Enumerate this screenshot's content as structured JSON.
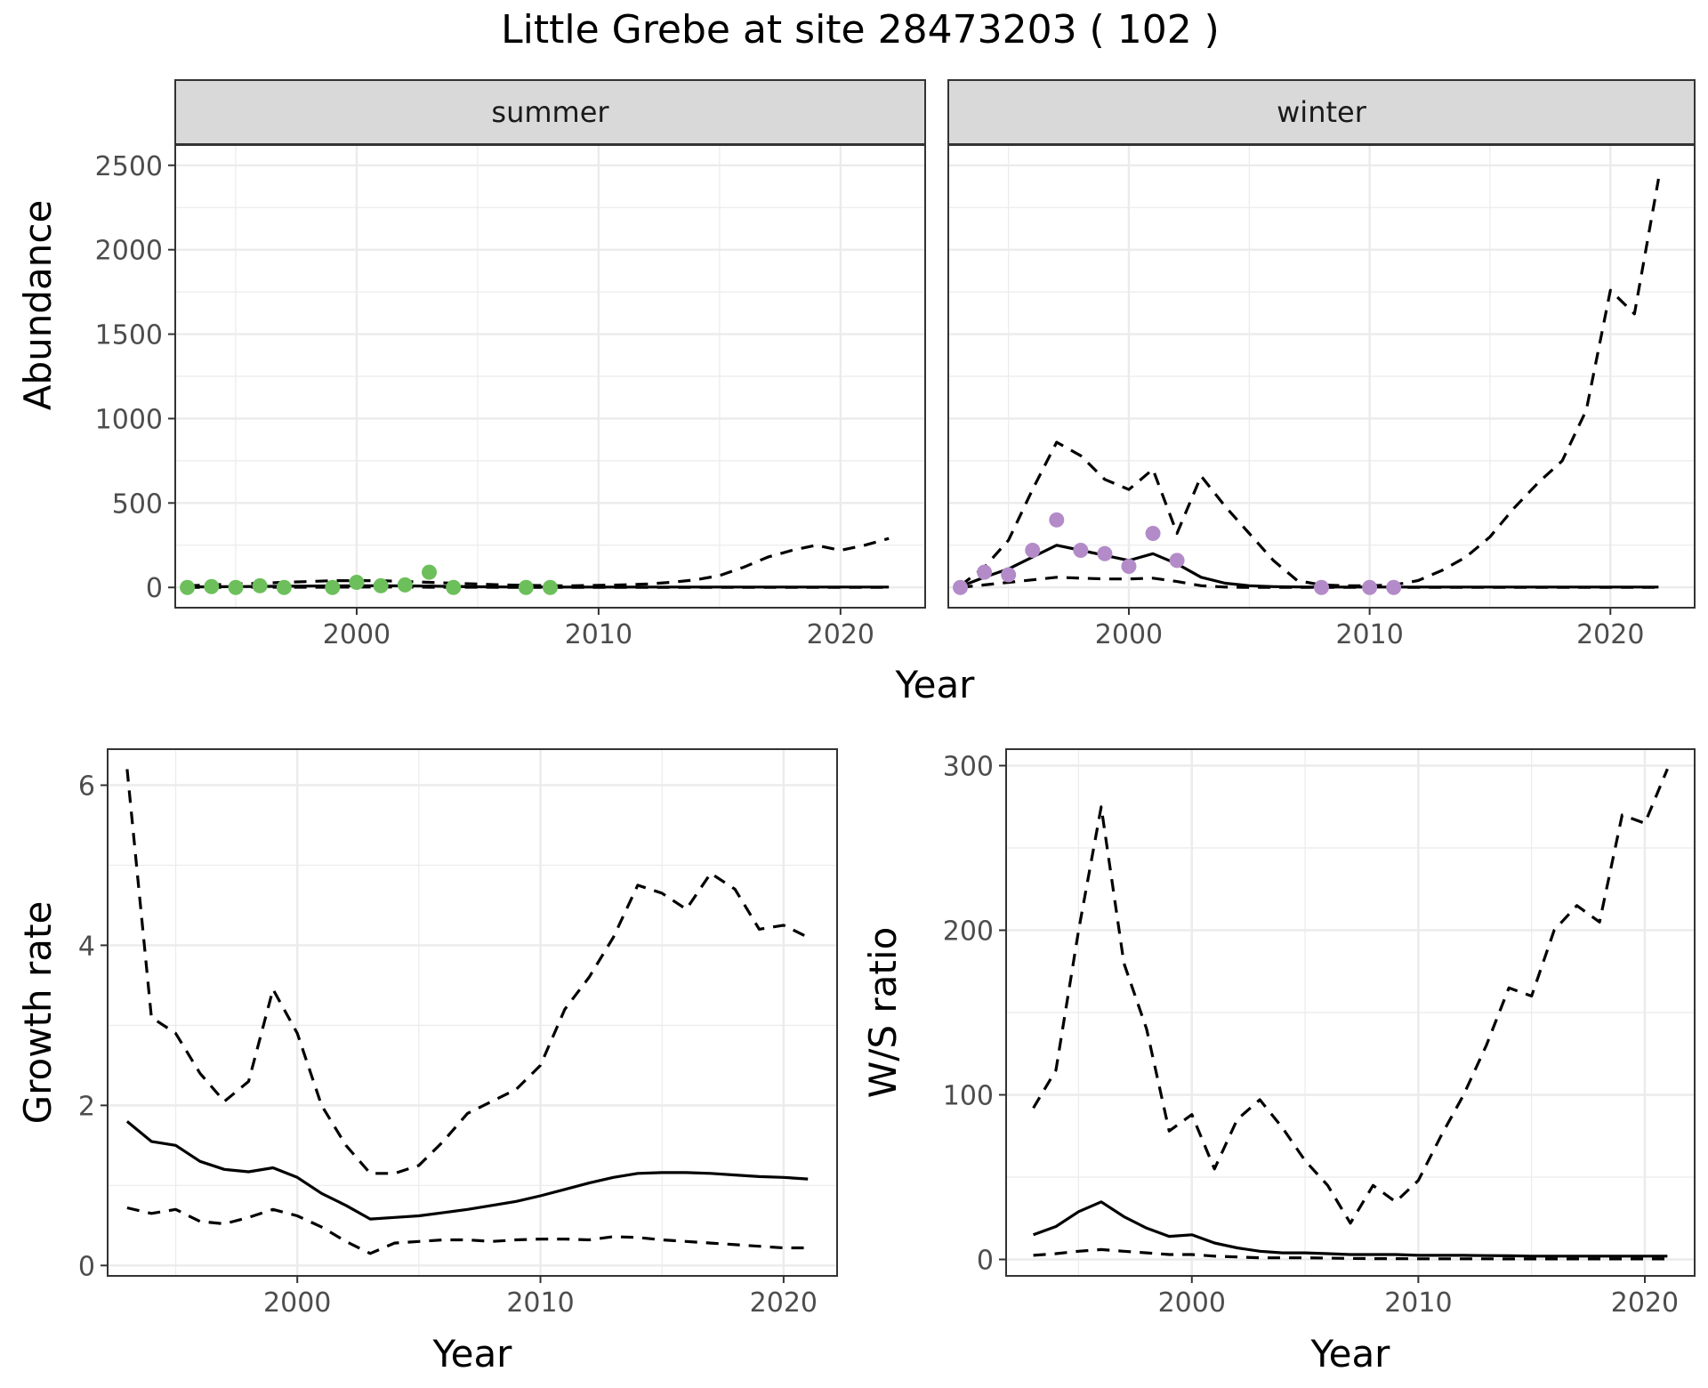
{
  "title": "Little Grebe at site 28473203 ( 102 )",
  "chart_data": [
    {
      "id": "abundance_summer",
      "type": "line",
      "facet": "summer",
      "xlabel": "Year",
      "ylabel": "Abundance",
      "xlim": [
        1992.5,
        2023.5
      ],
      "ylim": [
        -120,
        2620
      ],
      "x_ticks": [
        2000,
        2010,
        2020
      ],
      "y_ticks": [
        0,
        500,
        1000,
        1500,
        2000,
        2500
      ],
      "grid": true,
      "point_color": "#6cbf5b",
      "series": [
        {
          "role": "estimate",
          "style": "solid",
          "x": [
            1993,
            1994,
            1995,
            1996,
            1997,
            1998,
            1999,
            2000,
            2001,
            2002,
            2003,
            2004,
            2005,
            2006,
            2007,
            2008,
            2009,
            2010,
            2011,
            2012,
            2013,
            2014,
            2015,
            2016,
            2017,
            2018,
            2019,
            2020,
            2021,
            2022
          ],
          "y": [
            3,
            4,
            5,
            6,
            7,
            8,
            9,
            10,
            10,
            9,
            8,
            6,
            4,
            3,
            2,
            2,
            2,
            2,
            2,
            2,
            2,
            2,
            2,
            2,
            2,
            2,
            2,
            2,
            2,
            2
          ]
        },
        {
          "role": "lower",
          "style": "dashed",
          "x": [
            1993,
            1994,
            1995,
            1996,
            1997,
            1998,
            1999,
            2000,
            2001,
            2002,
            2003,
            2004,
            2005,
            2006,
            2007,
            2008,
            2009,
            2010,
            2011,
            2012,
            2013,
            2014,
            2015,
            2016,
            2017,
            2018,
            2019,
            2020,
            2021,
            2022
          ],
          "y": [
            0,
            0,
            1,
            1,
            1,
            1,
            1,
            2,
            2,
            2,
            1,
            1,
            1,
            0,
            0,
            0,
            0,
            0,
            0,
            0,
            0,
            0,
            0,
            0,
            0,
            0,
            0,
            0,
            0,
            0
          ]
        },
        {
          "role": "upper",
          "style": "dashed",
          "x": [
            1993,
            1994,
            1995,
            1996,
            1997,
            1998,
            1999,
            2000,
            2001,
            2002,
            2003,
            2004,
            2005,
            2006,
            2007,
            2008,
            2009,
            2010,
            2011,
            2012,
            2013,
            2014,
            2015,
            2016,
            2017,
            2018,
            2019,
            2020,
            2021,
            2022
          ],
          "y": [
            10,
            15,
            20,
            25,
            30,
            35,
            40,
            40,
            40,
            35,
            30,
            25,
            20,
            15,
            12,
            10,
            10,
            12,
            15,
            20,
            30,
            45,
            70,
            120,
            180,
            220,
            250,
            220,
            250,
            290
          ]
        }
      ],
      "observations": {
        "x": [
          1993,
          1994,
          1995,
          1996,
          1997,
          1999,
          2000,
          2001,
          2002,
          2003,
          2004,
          2007,
          2008
        ],
        "y": [
          0,
          5,
          0,
          10,
          0,
          0,
          30,
          10,
          15,
          90,
          0,
          0,
          0
        ]
      }
    },
    {
      "id": "abundance_winter",
      "type": "line",
      "facet": "winter",
      "xlabel": "Year",
      "ylabel": "Abundance",
      "xlim": [
        1992.5,
        2023.5
      ],
      "ylim": [
        -120,
        2620
      ],
      "x_ticks": [
        2000,
        2010,
        2020
      ],
      "y_ticks": [
        0,
        500,
        1000,
        1500,
        2000,
        2500
      ],
      "grid": true,
      "point_color": "#b38bc8",
      "series": [
        {
          "role": "estimate",
          "style": "solid",
          "x": [
            1993,
            1994,
            1995,
            1996,
            1997,
            1998,
            1999,
            2000,
            2001,
            2002,
            2003,
            2004,
            2005,
            2006,
            2007,
            2008,
            2009,
            2010,
            2011,
            2012,
            2013,
            2014,
            2015,
            2016,
            2017,
            2018,
            2019,
            2020,
            2021,
            2022
          ],
          "y": [
            5,
            60,
            110,
            180,
            250,
            220,
            190,
            160,
            200,
            140,
            60,
            25,
            10,
            5,
            3,
            2,
            2,
            2,
            2,
            2,
            2,
            2,
            2,
            2,
            2,
            2,
            2,
            2,
            2,
            2
          ]
        },
        {
          "role": "lower",
          "style": "dashed",
          "x": [
            1993,
            1994,
            1995,
            1996,
            1997,
            1998,
            1999,
            2000,
            2001,
            2002,
            2003,
            2004,
            2005,
            2006,
            2007,
            2008,
            2009,
            2010,
            2011,
            2012,
            2013,
            2014,
            2015,
            2016,
            2017,
            2018,
            2019,
            2020,
            2021,
            2022
          ],
          "y": [
            0,
            15,
            30,
            45,
            60,
            55,
            50,
            50,
            55,
            35,
            10,
            2,
            0,
            0,
            0,
            0,
            0,
            0,
            0,
            0,
            0,
            0,
            0,
            0,
            0,
            0,
            0,
            0,
            0,
            0
          ]
        },
        {
          "role": "upper",
          "style": "dashed",
          "x": [
            1993,
            1994,
            1995,
            1996,
            1997,
            1998,
            1999,
            2000,
            2001,
            2002,
            2003,
            2004,
            2005,
            2006,
            2007,
            2008,
            2009,
            2010,
            2011,
            2012,
            2013,
            2014,
            2015,
            2016,
            2017,
            2018,
            2019,
            2020,
            2021,
            2022
          ],
          "y": [
            10,
            120,
            280,
            580,
            860,
            780,
            640,
            580,
            700,
            320,
            660,
            480,
            320,
            160,
            40,
            15,
            10,
            10,
            15,
            40,
            100,
            180,
            300,
            470,
            620,
            750,
            1050,
            1760,
            1620,
            2420
          ]
        }
      ],
      "observations": {
        "x": [
          1993,
          1994,
          1995,
          1996,
          1997,
          1998,
          1999,
          2000,
          2001,
          2002,
          2008,
          2010,
          2011
        ],
        "y": [
          0,
          90,
          75,
          220,
          400,
          220,
          200,
          125,
          320,
          160,
          0,
          0,
          0
        ]
      }
    },
    {
      "id": "growth_rate",
      "type": "line",
      "xlabel": "Year",
      "ylabel": "Growth rate",
      "xlim": [
        1992.2,
        2022.2
      ],
      "ylim": [
        -0.13,
        6.45
      ],
      "x_ticks": [
        2000,
        2010,
        2020
      ],
      "y_ticks": [
        0,
        2,
        4,
        6
      ],
      "grid": true,
      "series": [
        {
          "role": "estimate",
          "style": "solid",
          "x": [
            1993,
            1994,
            1995,
            1996,
            1997,
            1998,
            1999,
            2000,
            2001,
            2002,
            2003,
            2004,
            2005,
            2006,
            2007,
            2008,
            2009,
            2010,
            2011,
            2012,
            2013,
            2014,
            2015,
            2016,
            2017,
            2018,
            2019,
            2020,
            2021
          ],
          "y": [
            1.8,
            1.55,
            1.5,
            1.3,
            1.2,
            1.17,
            1.22,
            1.1,
            0.9,
            0.75,
            0.58,
            0.6,
            0.62,
            0.66,
            0.7,
            0.75,
            0.8,
            0.87,
            0.95,
            1.03,
            1.1,
            1.15,
            1.16,
            1.16,
            1.15,
            1.13,
            1.11,
            1.1,
            1.08
          ]
        },
        {
          "role": "lower",
          "style": "dashed",
          "x": [
            1993,
            1994,
            1995,
            1996,
            1997,
            1998,
            1999,
            2000,
            2001,
            2002,
            2003,
            2004,
            2005,
            2006,
            2007,
            2008,
            2009,
            2010,
            2011,
            2012,
            2013,
            2014,
            2015,
            2016,
            2017,
            2018,
            2019,
            2020,
            2021
          ],
          "y": [
            0.72,
            0.65,
            0.7,
            0.55,
            0.52,
            0.6,
            0.7,
            0.62,
            0.48,
            0.3,
            0.15,
            0.28,
            0.3,
            0.32,
            0.32,
            0.3,
            0.32,
            0.33,
            0.33,
            0.32,
            0.36,
            0.35,
            0.32,
            0.3,
            0.28,
            0.26,
            0.24,
            0.22,
            0.22
          ]
        },
        {
          "role": "upper",
          "style": "dashed",
          "x": [
            1993,
            1994,
            1995,
            1996,
            1997,
            1998,
            1999,
            2000,
            2001,
            2002,
            2003,
            2004,
            2005,
            2006,
            2007,
            2008,
            2009,
            2010,
            2011,
            2012,
            2013,
            2014,
            2015,
            2016,
            2017,
            2018,
            2019,
            2020,
            2021
          ],
          "y": [
            6.2,
            3.1,
            2.9,
            2.4,
            2.05,
            2.3,
            3.45,
            2.9,
            2.0,
            1.5,
            1.15,
            1.15,
            1.25,
            1.55,
            1.9,
            2.05,
            2.2,
            2.5,
            3.2,
            3.6,
            4.1,
            4.75,
            4.65,
            4.45,
            4.9,
            4.7,
            4.2,
            4.25,
            4.1
          ]
        }
      ]
    },
    {
      "id": "ws_ratio",
      "type": "line",
      "xlabel": "Year",
      "ylabel": "W/S ratio",
      "xlim": [
        1991.8,
        2022.2
      ],
      "ylim": [
        -10,
        310
      ],
      "x_ticks": [
        2000,
        2010,
        2020
      ],
      "y_ticks": [
        0,
        100,
        200,
        300
      ],
      "grid": true,
      "series": [
        {
          "role": "estimate",
          "style": "solid",
          "x": [
            1993,
            1994,
            1995,
            1996,
            1997,
            1998,
            1999,
            2000,
            2001,
            2002,
            2003,
            2004,
            2005,
            2006,
            2007,
            2008,
            2009,
            2010,
            2011,
            2012,
            2013,
            2014,
            2015,
            2016,
            2017,
            2018,
            2019,
            2020,
            2021
          ],
          "y": [
            15,
            20,
            29,
            35,
            26,
            19,
            14,
            15,
            10,
            7,
            5,
            4,
            4,
            3.5,
            3,
            3,
            3,
            2.5,
            2.5,
            2.5,
            2.3,
            2.2,
            2,
            2,
            2,
            2,
            2,
            2,
            2
          ]
        },
        {
          "role": "lower",
          "style": "dashed",
          "x": [
            1993,
            1994,
            1995,
            1996,
            1997,
            1998,
            1999,
            2000,
            2001,
            2002,
            2003,
            2004,
            2005,
            2006,
            2007,
            2008,
            2009,
            2010,
            2011,
            2012,
            2013,
            2014,
            2015,
            2016,
            2017,
            2018,
            2019,
            2020,
            2021
          ],
          "y": [
            2.5,
            3.5,
            5,
            6,
            5,
            4,
            3,
            3,
            2,
            1.5,
            1,
            1,
            1,
            0.8,
            0.6,
            0.5,
            0.5,
            0.4,
            0.4,
            0.4,
            0.4,
            0.3,
            0.3,
            0.3,
            0.3,
            0.3,
            0.3,
            0.3,
            0.3
          ]
        },
        {
          "role": "upper",
          "style": "dashed",
          "x": [
            1993,
            1994,
            1995,
            1996,
            1997,
            1998,
            1999,
            2000,
            2001,
            2002,
            2003,
            2004,
            2005,
            2006,
            2007,
            2008,
            2009,
            2010,
            2011,
            2012,
            2013,
            2014,
            2015,
            2016,
            2017,
            2018,
            2019,
            2020,
            2021
          ],
          "y": [
            92,
            115,
            200,
            275,
            180,
            140,
            78,
            88,
            55,
            85,
            97,
            80,
            60,
            45,
            22,
            45,
            35,
            48,
            75,
            100,
            130,
            165,
            160,
            200,
            215,
            205,
            270,
            265,
            298
          ]
        }
      ]
    }
  ]
}
